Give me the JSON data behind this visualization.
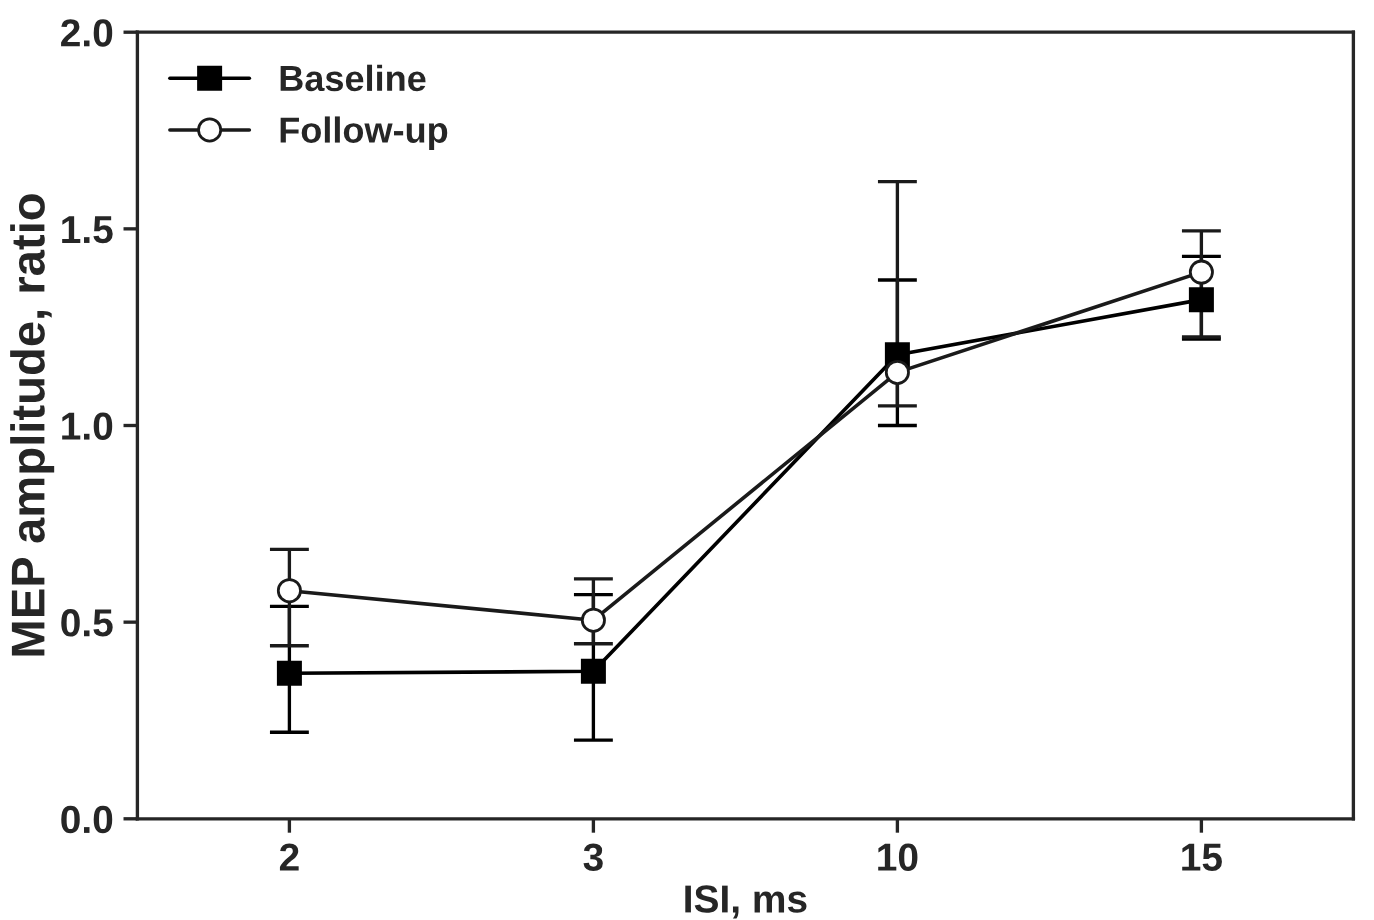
{
  "chart_data": {
    "type": "line",
    "xlabel": "ISI, ms",
    "ylabel": "MEP amplitude, ratio",
    "categories": [
      "2",
      "3",
      "10",
      "15"
    ],
    "series": [
      {
        "name": "Baseline",
        "color": "#000000",
        "marker": "square",
        "values": [
          0.37,
          0.375,
          1.18,
          1.32
        ],
        "errors": [
          [
            0.22,
            0.54
          ],
          [
            0.2,
            0.57
          ],
          [
            1.0,
            1.37
          ],
          [
            1.22,
            1.43
          ]
        ]
      },
      {
        "name": "Follow-up",
        "color": "#1a1a1a",
        "marker": "circle",
        "values": [
          0.58,
          0.505,
          1.135,
          1.39
        ],
        "errors": [
          [
            0.44,
            0.685
          ],
          [
            0.445,
            0.61
          ],
          [
            1.05,
            1.62
          ],
          [
            1.225,
            1.495
          ]
        ]
      }
    ],
    "ylim": [
      0,
      2.0
    ],
    "yticks": [
      {
        "value": 0,
        "label": "0.0"
      },
      0.5,
      {
        "value": 1,
        "label": "1.0"
      },
      1.5,
      {
        "value": 2,
        "label": "2.0"
      }
    ],
    "grid": false,
    "legend": "top left"
  }
}
